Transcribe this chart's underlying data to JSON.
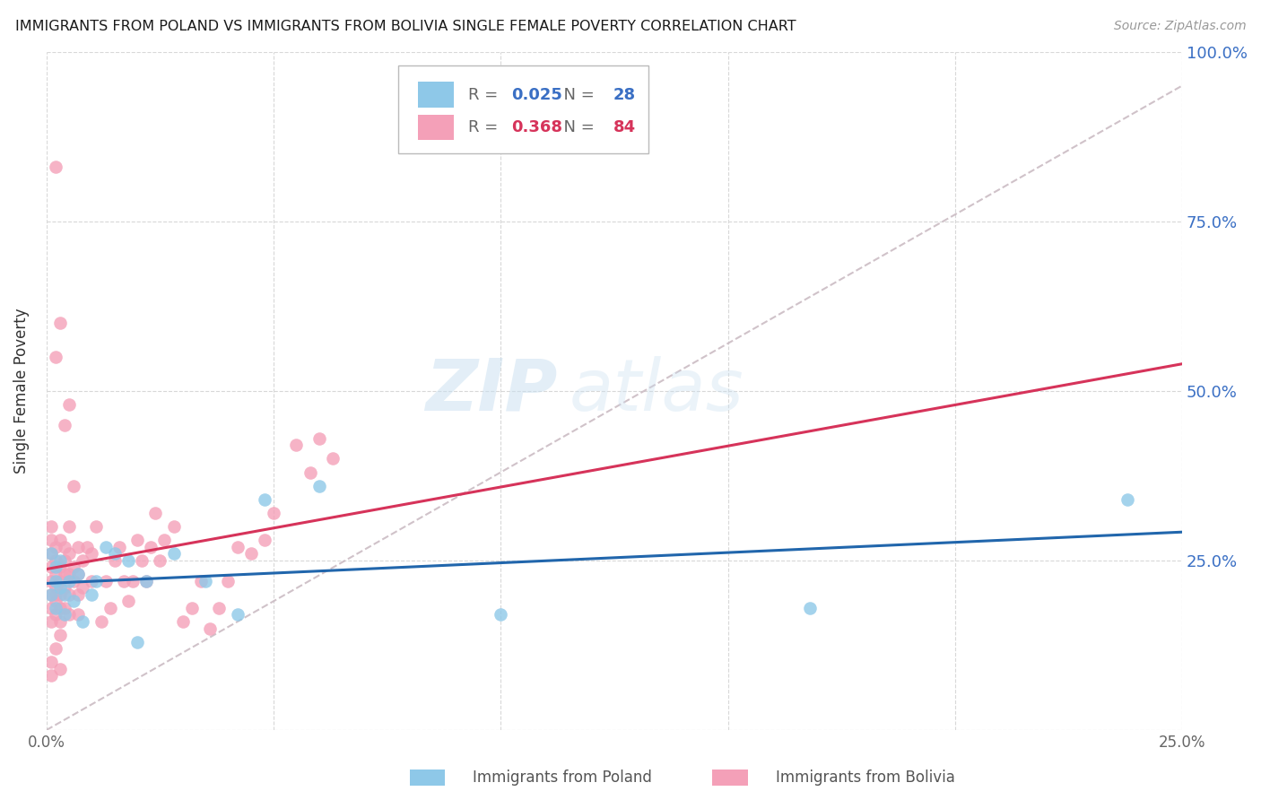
{
  "title": "IMMIGRANTS FROM POLAND VS IMMIGRANTS FROM BOLIVIA SINGLE FEMALE POVERTY CORRELATION CHART",
  "source": "Source: ZipAtlas.com",
  "ylabel": "Single Female Poverty",
  "ytick_labels": [
    "25.0%",
    "50.0%",
    "75.0%",
    "100.0%"
  ],
  "ytick_vals": [
    0.25,
    0.5,
    0.75,
    1.0
  ],
  "xlim": [
    0.0,
    0.25
  ],
  "ylim": [
    0.0,
    1.0
  ],
  "legend_poland": "Immigrants from Poland",
  "legend_bolivia": "Immigrants from Bolivia",
  "r_poland": "0.025",
  "n_poland": "28",
  "r_bolivia": "0.368",
  "n_bolivia": "84",
  "poland_color": "#8ec8e8",
  "bolivia_color": "#f4a0b8",
  "trend_poland_color": "#2166ac",
  "trend_bolivia_color": "#d6335a",
  "trend_dashed_color": "#c8b8c0",
  "background_color": "#ffffff",
  "watermark_zip": "ZIP",
  "watermark_atlas": "atlas",
  "poland_x": [
    0.001,
    0.001,
    0.002,
    0.002,
    0.002,
    0.003,
    0.003,
    0.004,
    0.004,
    0.005,
    0.006,
    0.007,
    0.008,
    0.01,
    0.011,
    0.013,
    0.015,
    0.018,
    0.02,
    0.022,
    0.028,
    0.035,
    0.042,
    0.048,
    0.06,
    0.1,
    0.168,
    0.238
  ],
  "poland_y": [
    0.2,
    0.26,
    0.22,
    0.24,
    0.18,
    0.25,
    0.21,
    0.2,
    0.17,
    0.22,
    0.19,
    0.23,
    0.16,
    0.2,
    0.22,
    0.27,
    0.26,
    0.25,
    0.13,
    0.22,
    0.26,
    0.22,
    0.17,
    0.34,
    0.36,
    0.17,
    0.18,
    0.34
  ],
  "bolivia_x": [
    0.001,
    0.001,
    0.001,
    0.001,
    0.001,
    0.001,
    0.001,
    0.001,
    0.002,
    0.002,
    0.002,
    0.002,
    0.002,
    0.002,
    0.002,
    0.003,
    0.003,
    0.003,
    0.003,
    0.003,
    0.003,
    0.003,
    0.004,
    0.004,
    0.004,
    0.004,
    0.004,
    0.005,
    0.005,
    0.005,
    0.005,
    0.005,
    0.006,
    0.006,
    0.006,
    0.007,
    0.007,
    0.007,
    0.007,
    0.008,
    0.008,
    0.009,
    0.01,
    0.01,
    0.011,
    0.012,
    0.013,
    0.014,
    0.015,
    0.016,
    0.017,
    0.018,
    0.019,
    0.02,
    0.021,
    0.022,
    0.023,
    0.024,
    0.025,
    0.026,
    0.028,
    0.03,
    0.032,
    0.034,
    0.036,
    0.038,
    0.04,
    0.042,
    0.045,
    0.048,
    0.05,
    0.055,
    0.058,
    0.06,
    0.063,
    0.002,
    0.003,
    0.004,
    0.005,
    0.001,
    0.001,
    0.002,
    0.003,
    0.002
  ],
  "bolivia_y": [
    0.22,
    0.2,
    0.24,
    0.18,
    0.26,
    0.16,
    0.28,
    0.3,
    0.23,
    0.2,
    0.25,
    0.17,
    0.19,
    0.27,
    0.21,
    0.22,
    0.18,
    0.24,
    0.2,
    0.16,
    0.28,
    0.14,
    0.23,
    0.21,
    0.25,
    0.18,
    0.27,
    0.2,
    0.23,
    0.17,
    0.26,
    0.3,
    0.24,
    0.22,
    0.36,
    0.2,
    0.23,
    0.27,
    0.17,
    0.21,
    0.25,
    0.27,
    0.22,
    0.26,
    0.3,
    0.16,
    0.22,
    0.18,
    0.25,
    0.27,
    0.22,
    0.19,
    0.22,
    0.28,
    0.25,
    0.22,
    0.27,
    0.32,
    0.25,
    0.28,
    0.3,
    0.16,
    0.18,
    0.22,
    0.15,
    0.18,
    0.22,
    0.27,
    0.26,
    0.28,
    0.32,
    0.42,
    0.38,
    0.43,
    0.4,
    0.55,
    0.6,
    0.45,
    0.48,
    0.08,
    0.1,
    0.12,
    0.09,
    0.83
  ]
}
